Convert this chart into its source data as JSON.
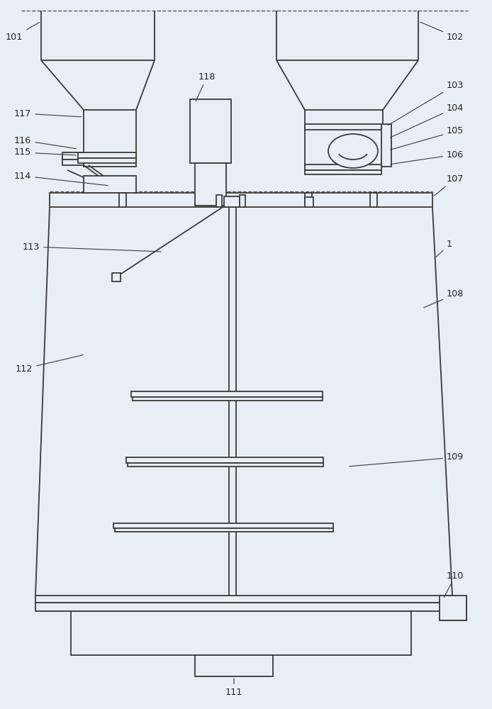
{
  "bg_color": "#e8eef5",
  "line_color": "#3a3a3a",
  "dash_color": "#5a5a5a",
  "label_color": "#222222",
  "figsize": [
    6.94,
    10.0
  ],
  "dpi": 100
}
